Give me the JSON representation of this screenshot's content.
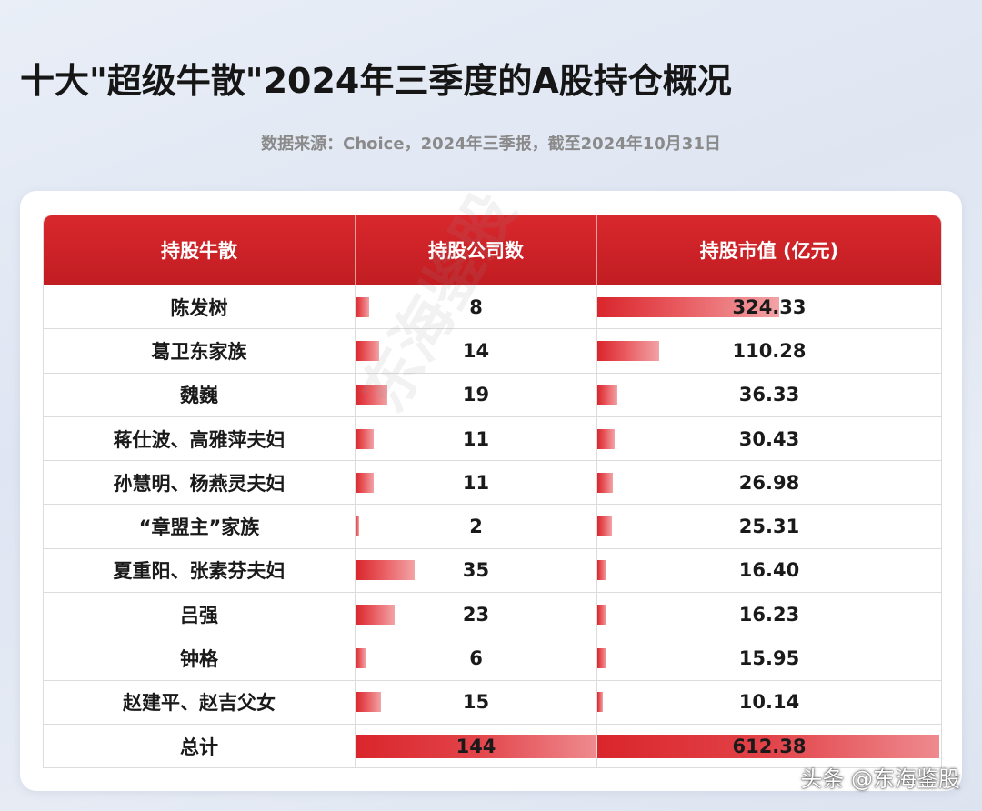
{
  "title": "十大\"超级牛散\"2024年三季度的A股持仓概况",
  "source": "数据来源：Choice，2024年三季报，截至2024年10月31日",
  "credit": "头条 @东海鉴股",
  "colors": {
    "header_red": "#c8202a",
    "bar_red": "#d9262c",
    "bar_light": "#f2a3a6"
  },
  "table": {
    "headers": [
      "持股牛散",
      "持股公司数",
      "持股市值 (亿元)"
    ],
    "rows": [
      {
        "name": "陈发树",
        "companies": "8",
        "value": "324.33"
      },
      {
        "name": "葛卫东家族",
        "companies": "14",
        "value": "110.28"
      },
      {
        "name": "魏巍",
        "companies": "19",
        "value": "36.33"
      },
      {
        "name": "蒋仕波、高雅萍夫妇",
        "companies": "11",
        "value": "30.43"
      },
      {
        "name": "孙慧明、杨燕灵夫妇",
        "companies": "11",
        "value": "26.98"
      },
      {
        "name": "“章盟主”家族",
        "companies": "2",
        "value": "25.31"
      },
      {
        "name": "夏重阳、张素芬夫妇",
        "companies": "35",
        "value": "16.40"
      },
      {
        "name": "吕强",
        "companies": "23",
        "value": "16.23"
      },
      {
        "name": "钟格",
        "companies": "6",
        "value": "15.95"
      },
      {
        "name": "赵建平、赵吉父女",
        "companies": "15",
        "value": "10.14"
      }
    ],
    "total": {
      "name": "总计",
      "companies": "144",
      "value": "612.38"
    }
  },
  "chart_data": {
    "type": "table",
    "title": "十大\"超级牛散\"2024年三季度的A股持仓概况",
    "columns": [
      "持股牛散",
      "持股公司数",
      "持股市值 (亿元)"
    ],
    "categories": [
      "陈发树",
      "葛卫东家族",
      "魏巍",
      "蒋仕波、高雅萍夫妇",
      "孙慧明、杨燕灵夫妇",
      "“章盟主”家族",
      "夏重阳、张素芬夫妇",
      "吕强",
      "钟格",
      "赵建平、赵吉父女"
    ],
    "series": [
      {
        "name": "持股公司数",
        "values": [
          8,
          14,
          19,
          11,
          11,
          2,
          35,
          23,
          6,
          15
        ],
        "total": 144
      },
      {
        "name": "持股市值 (亿元)",
        "values": [
          324.33,
          110.28,
          36.33,
          30.43,
          26.98,
          25.31,
          16.4,
          16.23,
          15.95,
          10.14
        ],
        "total": 612.38
      }
    ]
  }
}
